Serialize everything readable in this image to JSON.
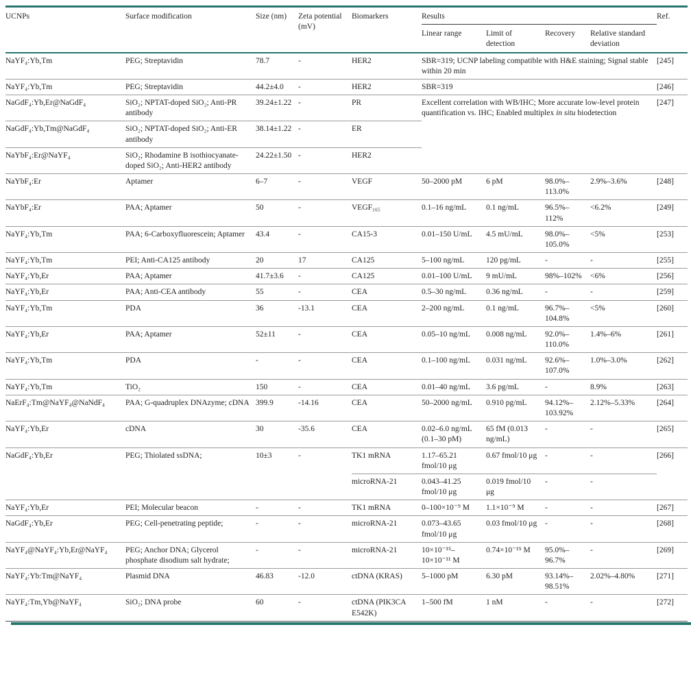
{
  "meta": {
    "accent_teal": "#26766e",
    "rule_gray": "#9a9a9a",
    "text_color": "#1f1f1f"
  },
  "table": {
    "headers": {
      "ucnps": "UCNPs",
      "surface": "Surface modification",
      "size": "Size (nm)",
      "zeta": "Zeta potential (mV)",
      "biomarkers": "Biomarkers",
      "results": "Results",
      "linear_range": "Linear range",
      "lod": "Limit of detection",
      "recovery": "Recovery",
      "rsd": "Relative standard deviation",
      "ref": "Ref."
    },
    "rows": [
      {
        "ucnp": "NaYF₄:Yb,Tm",
        "surface": "PEG; Streptavidin",
        "size": "78.7",
        "zeta": "-",
        "biomarker": "HER2",
        "results": "SBR=319; UCNP labeling compatible with H&E staining; Signal stable within 20 min",
        "ref": "[245]"
      },
      {
        "ucnp": "NaYF₄:Yb,Tm",
        "surface": "PEG; Streptavidin",
        "size": "44.2±4.0",
        "zeta": "-",
        "biomarker": "HER2",
        "results": "SBR=319",
        "ref": "[246]"
      },
      {
        "ucnp": "NaGdF₄:Yb,Er@NaGdF₄",
        "surface": "SiO₂; NPTAT-doped SiO₂; Anti-PR antibody",
        "size": "39.24±1.22",
        "zeta": "-",
        "biomarker": "PR",
        "results_p1": "Excellent correlation with WB/IHC; More accurate low-level protein quantification vs. IHC; Enabled multiplex ",
        "results_it": "in situ",
        "results_p2": " biodetection",
        "ref": "[247]"
      },
      {
        "ucnp": "NaGdF₄:Yb,Tm@NaGdF₄",
        "surface": "SiO₂; NPTAT-doped SiO₂; Anti-ER antibody",
        "size": "38.14±1.22",
        "zeta": "-",
        "biomarker": "ER"
      },
      {
        "ucnp": "NaYbF₄:Er@NaYF₄",
        "surface": "SiO₂; Rhodamine B isothiocyanate-doped SiO₂; Anti-HER2 antibody",
        "size": "24.22±1.50",
        "zeta": "-",
        "biomarker": "HER2"
      },
      {
        "ucnp": "NaYbF₄:Er",
        "surface": "Aptamer",
        "size": "6–7",
        "zeta": "-",
        "biomarker": "VEGF",
        "linear": "50–2000 pM",
        "lod": "6 pM",
        "recovery": "98.0%–113.0%",
        "rsd": "2.9%–3.6%",
        "ref": "[248]"
      },
      {
        "ucnp": "NaYbF₄:Er",
        "surface": "PAA; Aptamer",
        "size": "50",
        "zeta": "-",
        "biomarker": "VEGF₁₆₅",
        "linear": "0.1–16 ng/mL",
        "lod": "0.1 ng/mL",
        "recovery": "96.5%–112%",
        "rsd": "<6.2%",
        "ref": "[249]"
      },
      {
        "ucnp": "NaYF₄:Yb,Tm",
        "surface": "PAA; 6-Carboxyfluorescein; Aptamer",
        "size": "43.4",
        "zeta": "-",
        "biomarker": "CA15-3",
        "linear": "0.01–150 U/mL",
        "lod": "4.5 mU/mL",
        "recovery": "98.0%–105.0%",
        "rsd": "<5%",
        "ref": "[253]"
      },
      {
        "ucnp": "NaYF₄:Yb,Tm",
        "surface": "PEI; Anti-CA125 antibody",
        "size": "20",
        "zeta": "17",
        "biomarker": "CA125",
        "linear": "5–100 ng/mL",
        "lod": "120 pg/mL",
        "recovery": "-",
        "rsd": "-",
        "ref": "[255]"
      },
      {
        "ucnp": "NaYF₄:Yb,Er",
        "surface": "PAA; Aptamer",
        "size": "41.7±3.6",
        "zeta": "-",
        "biomarker": "CA125",
        "linear": "0.01–100 U/mL",
        "lod": "9 mU/mL",
        "recovery": "98%–102%",
        "rsd": "<6%",
        "ref": "[256]"
      },
      {
        "ucnp": "NaYF₄:Yb,Er",
        "surface": "PAA; Anti-CEA antibody",
        "size": "55",
        "zeta": "-",
        "biomarker": "CEA",
        "linear": "0.5–30 ng/mL",
        "lod": "0.36 ng/mL",
        "recovery": "-",
        "rsd": "-",
        "ref": "[259]"
      },
      {
        "ucnp": "NaYF₄:Yb,Tm",
        "surface": "PDA",
        "size": "36",
        "zeta": "-13.1",
        "biomarker": "CEA",
        "linear": "2–200 ng/mL",
        "lod": "0.1 ng/mL",
        "recovery": "96.7%–104.8%",
        "rsd": "<5%",
        "ref": "[260]"
      },
      {
        "ucnp": "NaYF₄:Yb,Er",
        "surface": "PAA; Aptamer",
        "size": "52±11",
        "zeta": "-",
        "biomarker": "CEA",
        "linear": "0.05–10 ng/mL",
        "lod": "0.008 ng/mL",
        "recovery": "92.0%–110.0%",
        "rsd": "1.4%–6%",
        "ref": "[261]"
      },
      {
        "ucnp": "NaYF₄:Yb,Tm",
        "surface": "PDA",
        "size": "-",
        "zeta": "-",
        "biomarker": "CEA",
        "linear": "0.1–100 ng/mL",
        "lod": "0.031 ng/mL",
        "recovery": "92.6%–107.0%",
        "rsd": "1.0%–3.0%",
        "ref": "[262]"
      },
      {
        "ucnp": "NaYF₄:Yb,Tm",
        "surface": "TiO₂",
        "size": "150",
        "zeta": "-",
        "biomarker": "CEA",
        "linear": "0.01–40 ng/mL",
        "lod": "3.6 pg/mL",
        "recovery": "-",
        "rsd": "8.9%",
        "ref": "[263]"
      },
      {
        "ucnp": "NaErF₄:Tm@NaYF₄@NaNdF₄",
        "surface": "PAA; G-quadruplex DNAzyme; cDNA",
        "size": "399.9",
        "zeta": "-14.16",
        "biomarker": "CEA",
        "linear": "50–2000 ng/mL",
        "lod": "0.910 pg/mL",
        "recovery": "94.12%–103.92%",
        "rsd": "2.12%–5.33%",
        "ref": "[264]"
      },
      {
        "ucnp": "NaYF₄:Yb,Er",
        "surface": "cDNA",
        "size": "30",
        "zeta": "-35.6",
        "biomarker": "CEA",
        "linear": "0.02–6.0 ng/mL (0.1–30 pM)",
        "lod": "65 fM (0.013 ng/mL)",
        "recovery": "-",
        "rsd": "-",
        "ref": "[265]"
      },
      {
        "ucnp": "NaGdF₄:Yb,Er",
        "surface": "PEG; Thiolated ssDNA;",
        "size": "10±3",
        "zeta": "-",
        "ref": "[266]",
        "sub": [
          {
            "biomarker": "TK1 mRNA",
            "linear": "1.17–65.21 fmol/10 μg",
            "lod": "0.67 fmol/10 μg",
            "recovery": "-",
            "rsd": "-"
          },
          {
            "biomarker": "microRNA-21",
            "linear": "0.043–41.25 fmol/10 μg",
            "lod": "0.019 fmol/10 μg",
            "recovery": "-",
            "rsd": "-"
          }
        ]
      },
      {
        "ucnp": "NaYF₄:Yb,Er",
        "surface": "PEI; Molecular beacon",
        "size": "-",
        "zeta": "-",
        "biomarker": "TK1 mRNA",
        "linear": "0–100×10⁻⁹ M",
        "lod": "1.1×10⁻⁹ M",
        "recovery": "-",
        "rsd": "-",
        "ref": "[267]"
      },
      {
        "ucnp": "NaGdF₄:Yb,Er",
        "surface": "PEG; Cell-penetrating peptide;",
        "size": "-",
        "zeta": "-",
        "biomarker": "microRNA-21",
        "linear": "0.073–43.65 fmol/10 μg",
        "lod": "0.03 fmol/10 μg",
        "recovery": "-",
        "rsd": "-",
        "ref": "[268]"
      },
      {
        "ucnp": "NaYF₄@NaYF₄:Yb,Er@NaYF₄",
        "surface": "PEG; Anchor DNA; Glycerol phosphate disodium salt hydrate;",
        "size": "-",
        "zeta": "-",
        "biomarker": "microRNA-21",
        "linear": "10×10⁻¹⁵–10×10⁻¹¹ M",
        "lod": "0.74×10⁻¹⁵ M",
        "recovery": "95.0%–96.7%",
        "rsd": "-",
        "ref": "[269]"
      },
      {
        "ucnp": "NaYF₄:Yb:Tm@NaYF₄",
        "surface": "Plasmid DNA",
        "size": "46.83",
        "zeta": "-12.0",
        "biomarker": "ctDNA (KRAS)",
        "linear": "5–1000 pM",
        "lod": "6.30 pM",
        "recovery": "93.14%–98.51%",
        "rsd": "2.02%–4.80%",
        "ref": "[271]"
      },
      {
        "ucnp": "NaYF₄:Tm,Yb@NaYF₄",
        "surface": "SiO₂; DNA probe",
        "size": "60",
        "zeta": "-",
        "biomarker": "ctDNA (PIK3CA E542K)",
        "linear": "1–500 fM",
        "lod": "1 nM",
        "recovery": "-",
        "rsd": "-",
        "ref": "[272]"
      }
    ]
  }
}
